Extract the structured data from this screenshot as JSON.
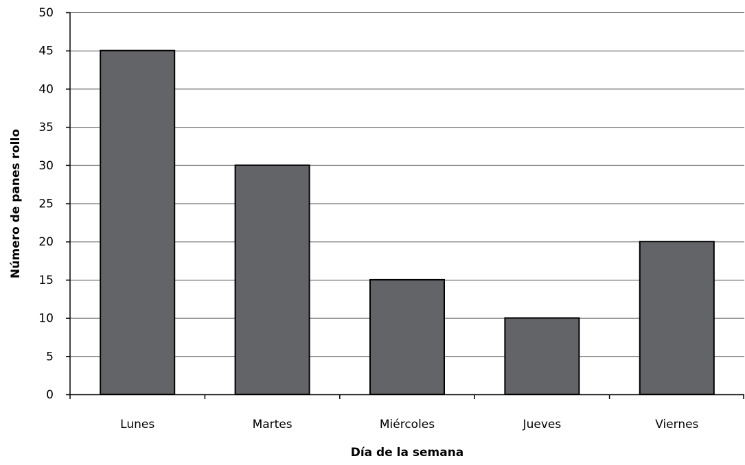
{
  "chart_data": {
    "type": "bar",
    "categories": [
      "Lunes",
      "Martes",
      "Miércoles",
      "Jueves",
      "Viernes"
    ],
    "values": [
      45,
      30,
      15,
      10,
      20
    ],
    "xlabel": "Día de la semana",
    "ylabel": "Número de panes rollo",
    "ylim": [
      0,
      50
    ],
    "yticks": [
      0,
      5,
      10,
      15,
      20,
      25,
      30,
      35,
      40,
      45,
      50
    ],
    "grid": true,
    "legend": "none",
    "bar_color": "#636467",
    "bar_stroke": "#000000",
    "grid_color": "#555555"
  }
}
